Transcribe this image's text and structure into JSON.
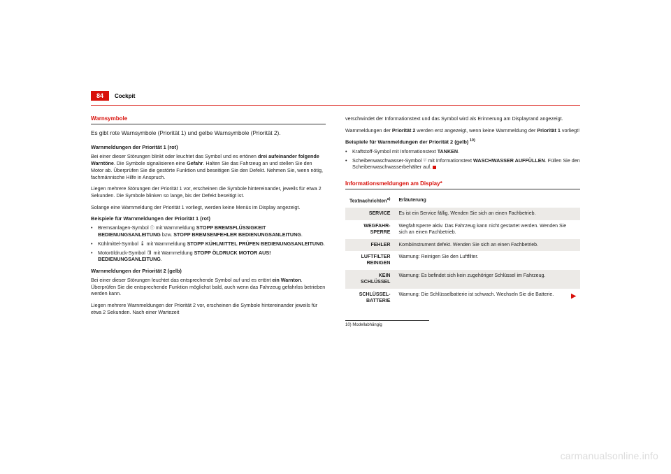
{
  "header": {
    "pageNumber": "84",
    "section": "Cockpit"
  },
  "left": {
    "title": "Warnsymbole",
    "intro": "Es gibt rote Warnsymbole (Priorität 1) und gelbe Warnsymbole (Priorität 2).",
    "h1": "Warnmeldungen der Priorität 1 (rot)",
    "p1a": "Bei einer dieser Störungen blinkt oder leuchtet das Symbol und es ertönen ",
    "p1b": "drei aufeinander folgende Warntöne",
    "p1c": ". Die Symbole signalisieren eine ",
    "p1d": "Gefahr",
    "p1e": ". Halten Sie das Fahrzeug an und stellen Sie den Motor ab. Überprüfen Sie die gestörte Funktion und beseitigen Sie den Defekt. Nehmen Sie, wenn nötig, fachmännische Hilfe in Anspruch.",
    "p2": "Liegen mehrere Störungen der Priorität 1 vor, erscheinen die Symbole hintereinander, jeweils für etwa 2 Sekunden. Die Symbole blinken so lange, bis der Defekt beseitigt ist.",
    "p3": "Solange eine Warnmeldung der Priorität 1 vorliegt, werden keine Menüs im Display angezeigt.",
    "h2": "Beispiele für Warnmeldungen der Priorität 1 (rot)",
    "b1a": "Bremsanlagen-Symbol ",
    "b1b": " mit Warnmeldung ",
    "b1c": "STOPP BREMSFLÜSSIGKEIT BEDIENUNGSANLEITUNG",
    "b1d": " bzw. ",
    "b1e": "STOPP BREMSENFEHLER BEDIENUNGSANLEITUNG",
    "b2a": "Kühlmittel-Symbol ",
    "b2b": " mit Warnmeldung ",
    "b2c": "STOPP KÜHLMITTEL PRÜFEN BEDIENUNGSANLEITUNG",
    "b3a": "Motoröldruck-Symbol ",
    "b3b": " mit Warnmeldung ",
    "b3c": "STOPP ÖLDRUCK MOTOR AUS! BEDIENUNGSANLEITUNG",
    "h3": "Warnmeldungen der Priorität 2 (gelb)",
    "p4a": "Bei einer dieser Störungen leuchtet das entsprechende Symbol auf und es ertönt ",
    "p4b": "ein Warnton",
    "p4c": ". Überprüfen Sie die entsprechende Funktion möglichst bald, auch wenn das Fahrzeug gefahrlos betrieben werden kann.",
    "p5": "Liegen mehrere Warnmeldungen der Priorität 2 vor, erscheinen die Symbole hintereinander jeweils für etwa 2 Sekunden. Nach einer Wartezeit"
  },
  "right": {
    "p1": "verschwindet der Informationstext und das Symbol wird als Erinnerung am Displayrand angezeigt.",
    "p2a": "Warnmeldungen der ",
    "p2b": "Priorität 2",
    "p2c": " werden erst angezeigt, wenn keine Warnmeldung der ",
    "p2d": "Priorität 1",
    "p2e": " vorliegt!",
    "h1": "Beispiele für Warnmeldungen der Priorität 2 (gelb)",
    "h1sup": " 10)",
    "rb1a": "Kraftstoff-Symbol mit Informationstext ",
    "rb1b": "TANKEN",
    "rb2a": "Scheibenwaschwasser-Symbol ",
    "rb2b": " mit Informationstext ",
    "rb2c": "WASCHWASSER AUFFÜLLEN",
    "rb2d": ". Füllen Sie den Scheibenwaschwasserbehälter auf.",
    "title2": "Informationsmeldungen am Display*",
    "table": {
      "col1": "Textnachrichten",
      "col1sup": "a)",
      "col2": "Erläuterung",
      "rows": [
        {
          "label": "SERVICE",
          "text": "Es ist ein Service fällig. Wenden Sie sich an einen Fachbetrieb.",
          "shade": true
        },
        {
          "label": "WEGFAHR-SPERRE",
          "text": "Wegfahrsperre aktiv. Das Fahrzeug kann nicht gestartet werden. Wenden Sie sich an einen Fachbetrieb.",
          "shade": false
        },
        {
          "label": "FEHLER",
          "text": "Kombiinstrument defekt. Wenden Sie sich an einen Fachbetrieb.",
          "shade": true
        },
        {
          "label": "LUFTFILTER REINIGEN",
          "text": "Warnung: Reinigen Sie den Luftfilter.",
          "shade": false
        },
        {
          "label": "KEIN SCHLÜSSEL",
          "text": "Warnung: Es befindet sich kein zugehöriger Schlüssel im Fahrzeug.",
          "shade": true
        },
        {
          "label": "SCHLÜSSEL-BATTERIE",
          "text": "Warnung: Die Schlüsselbatterie ist schwach. Wechseln Sie die Batterie.",
          "shade": false
        }
      ]
    },
    "footnote": "10) Modellabhängig"
  },
  "watermark": "carmanualsonline.info"
}
